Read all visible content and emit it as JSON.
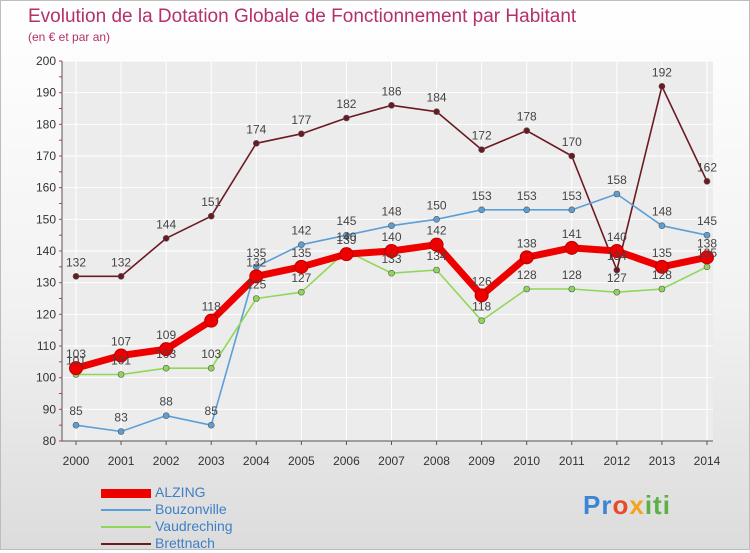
{
  "title": "Evolution de la Dotation Globale de Fonctionnement par Habitant",
  "subtitle": "(en € et par an)",
  "chart_data": {
    "type": "line",
    "x": [
      "2000",
      "2001",
      "2002",
      "2003",
      "2004",
      "2005",
      "2006",
      "2007",
      "2008",
      "2009",
      "2010",
      "2011",
      "2012",
      "2013",
      "2014"
    ],
    "ylim": [
      80,
      200
    ],
    "yticks": [
      80,
      90,
      100,
      110,
      120,
      130,
      140,
      150,
      160,
      170,
      180,
      190,
      200
    ],
    "grid": true,
    "legend_position": "bottom-left",
    "series": [
      {
        "name": "Brettnach",
        "color": "#6b1a22",
        "values": [
          132,
          132,
          144,
          151,
          174,
          177,
          182,
          186,
          184,
          172,
          178,
          170,
          134,
          192,
          162
        ]
      },
      {
        "name": "Bouzonville",
        "color": "#5c9fd6",
        "values": [
          85,
          83,
          88,
          85,
          135,
          142,
          145,
          148,
          150,
          153,
          153,
          153,
          158,
          148,
          145
        ]
      },
      {
        "name": "Vaudreching",
        "color": "#8fd75a",
        "values": [
          101,
          101,
          103,
          103,
          125,
          127,
          140,
          133,
          134,
          118,
          128,
          128,
          127,
          128,
          135
        ]
      },
      {
        "name": "ALZING",
        "color": "#ee0000",
        "values": [
          103,
          107,
          109,
          118,
          132,
          135,
          139,
          140,
          142,
          126,
          138,
          141,
          140,
          135,
          138
        ]
      }
    ]
  },
  "legend": [
    {
      "name": "ALZING",
      "color": "#ee0000",
      "thickness": 9
    },
    {
      "name": "Bouzonville",
      "color": "#5c9fd6",
      "thickness": 2
    },
    {
      "name": "Vaudreching",
      "color": "#8fd75a",
      "thickness": 2
    },
    {
      "name": "Brettnach",
      "color": "#6b1a22",
      "thickness": 2
    }
  ],
  "logo": {
    "p1": "Pr",
    "p2": "o",
    "p3": "x",
    "p4": "iti"
  }
}
